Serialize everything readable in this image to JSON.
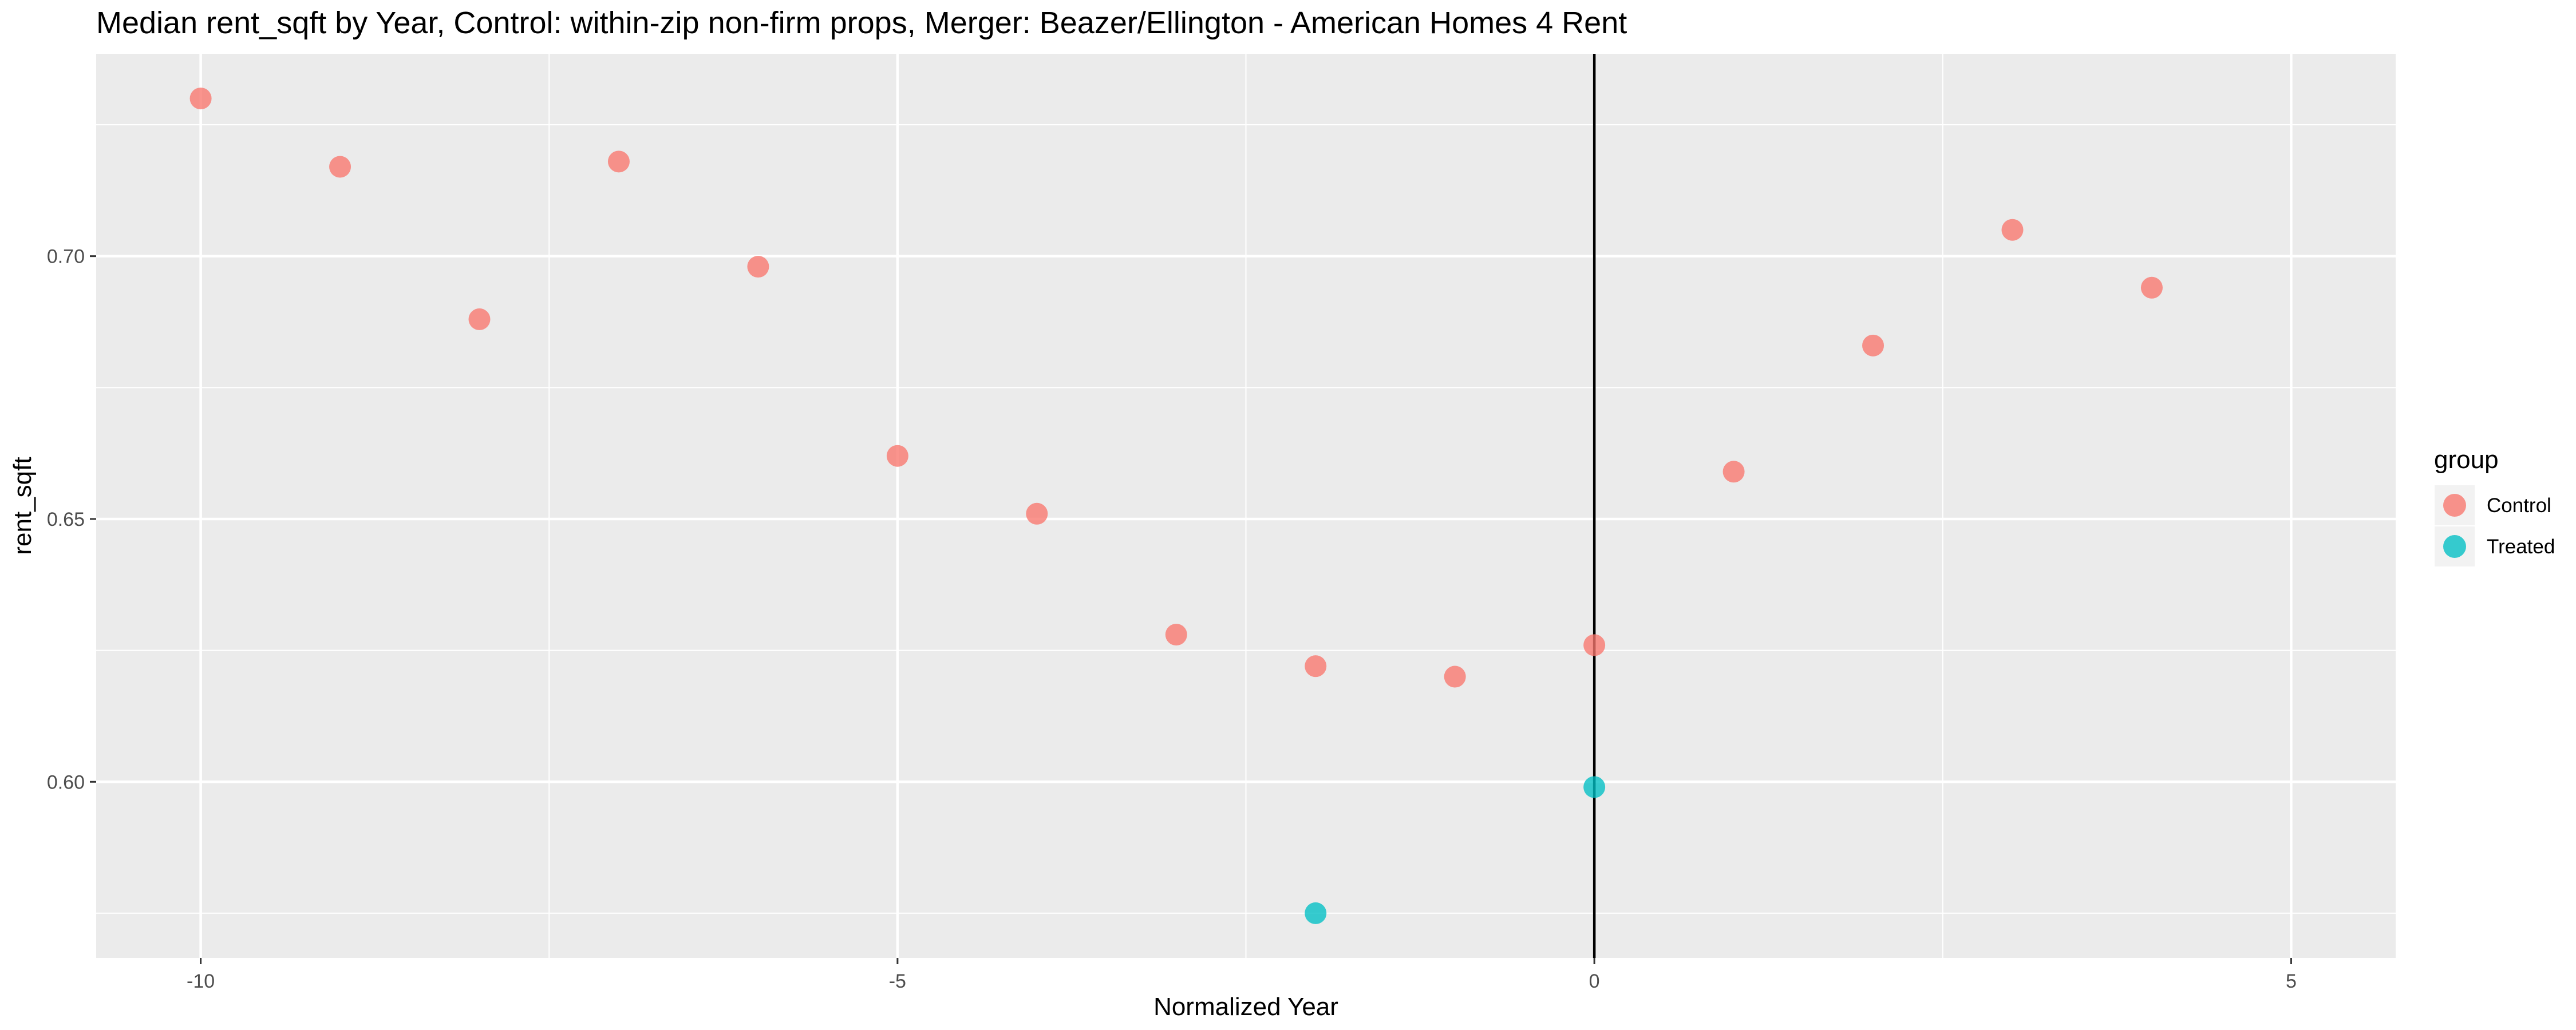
{
  "chart_data": {
    "type": "scatter",
    "title": "Median rent_sqft by Year, Control: within-zip non-firm props, Merger: Beazer/Ellington - American Homes 4 Rent",
    "xlabel": "Normalized Year",
    "ylabel": "rent_sqft",
    "xlim": [
      -10.75,
      5.75
    ],
    "ylim": [
      0.5665,
      0.7385
    ],
    "x_ticks": [
      -10,
      -5,
      0,
      5
    ],
    "x_tick_labels": [
      "-10",
      "-5",
      "0",
      "5"
    ],
    "y_ticks": [
      0.6,
      0.65,
      0.7
    ],
    "y_tick_labels": [
      "0.60",
      "0.65",
      "0.70"
    ],
    "x_minor_ticks": [
      -7.5,
      -2.5,
      2.5
    ],
    "y_minor_ticks": [
      0.575,
      0.625,
      0.675,
      0.725
    ],
    "grid": true,
    "vline_x": 0,
    "legend": {
      "title": "group",
      "position": "right"
    },
    "series": [
      {
        "name": "Control",
        "color": "#F8766D",
        "x": [
          -10,
          -9,
          -8,
          -7,
          -6,
          -5,
          -4,
          -3,
          -2,
          -1,
          0,
          1,
          2,
          3,
          4
        ],
        "y": [
          0.73,
          0.717,
          0.688,
          0.718,
          0.698,
          0.662,
          0.651,
          0.628,
          0.622,
          0.62,
          0.626,
          0.659,
          0.683,
          0.705,
          0.694
        ]
      },
      {
        "name": "Treated",
        "color": "#00BFC4",
        "x": [
          -2,
          0
        ],
        "y": [
          0.575,
          0.599
        ]
      }
    ]
  }
}
